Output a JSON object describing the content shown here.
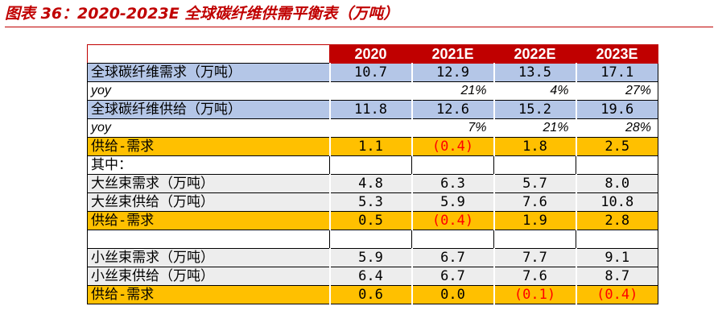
{
  "title": "图表 36：2020-2023E 全球碳纤维供需平衡表（万吨）",
  "header": [
    "2020",
    "2021E",
    "2022E",
    "2023E"
  ],
  "rows": [
    {
      "label": "全球碳纤维需求（万吨）",
      "values": [
        "10.7",
        "12.9",
        "13.5",
        "17.1"
      ]
    },
    {
      "label": "yoy",
      "values": [
        "",
        "21%",
        "4%",
        "27%"
      ]
    },
    {
      "label": "全球碳纤维供给（万吨）",
      "values": [
        "11.8",
        "12.6",
        "15.2",
        "19.6"
      ]
    },
    {
      "label": "yoy",
      "values": [
        "",
        "7%",
        "21%",
        "28%"
      ]
    },
    {
      "label": "供给-需求",
      "values": [
        "1.1",
        "(0.4)",
        "1.8",
        "2.5"
      ]
    },
    {
      "label": "其中：",
      "values": [
        "",
        "",
        "",
        ""
      ]
    },
    {
      "label": "大丝束需求（万吨）",
      "values": [
        "4.8",
        "6.3",
        "5.7",
        "8.0"
      ]
    },
    {
      "label": "大丝束供给（万吨）",
      "values": [
        "5.3",
        "5.9",
        "7.6",
        "10.8"
      ]
    },
    {
      "label": "供给-需求",
      "values": [
        "0.5",
        "(0.4)",
        "1.9",
        "2.8"
      ]
    },
    {
      "label": "",
      "values": [
        "",
        "",
        "",
        ""
      ]
    },
    {
      "label": "小丝束需求（万吨）",
      "values": [
        "5.9",
        "6.7",
        "7.7",
        "9.1"
      ]
    },
    {
      "label": "小丝束供给（万吨）",
      "values": [
        "6.4",
        "6.7",
        "7.6",
        "8.7"
      ]
    },
    {
      "label": "供给-需求",
      "values": [
        "0.6",
        "0.0",
        "(0.1)",
        "(0.4)"
      ]
    }
  ],
  "colors": {
    "accent": "#c00000",
    "blue_row": "#b4c6e7",
    "orange_row": "#ffc000",
    "grey_row": "#ededed",
    "negative": "#ff0000"
  }
}
